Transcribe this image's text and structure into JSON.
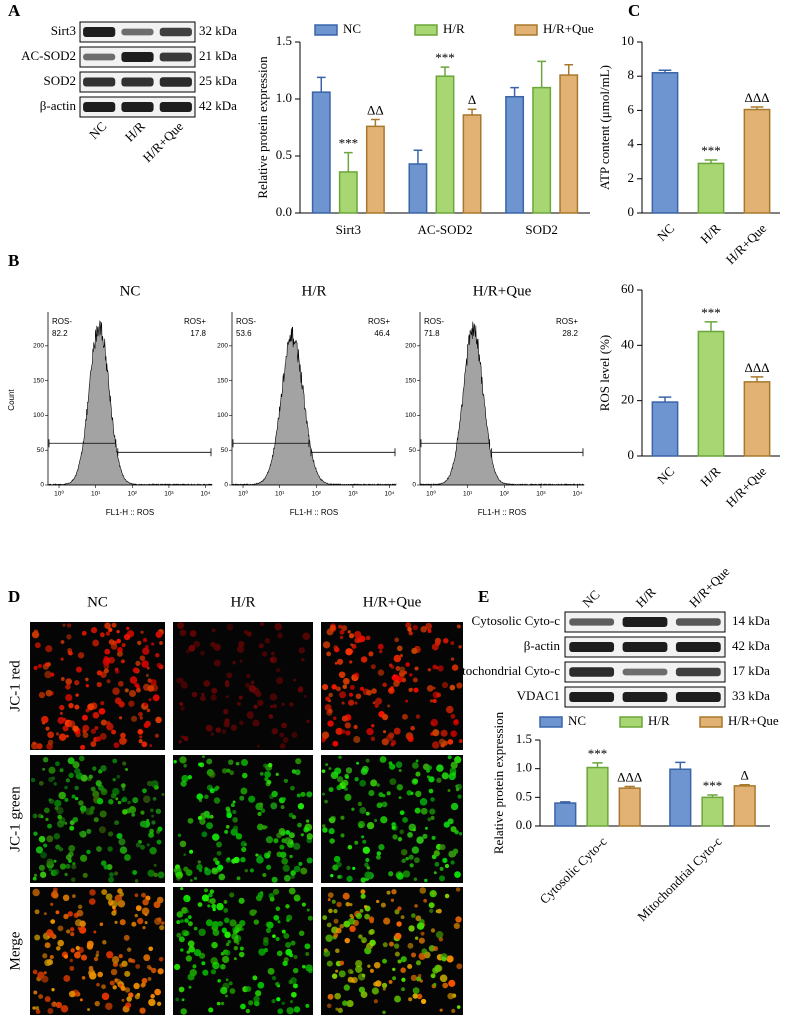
{
  "panel_labels": [
    "A",
    "B",
    "C",
    "D",
    "E"
  ],
  "blot_a": {
    "lanes": [
      "NC",
      "H/R",
      "H/R+Que"
    ],
    "bands": [
      {
        "protein": "Sirt3",
        "size": "32 kDa"
      },
      {
        "protein": "AC-SOD2",
        "size": "21 kDa"
      },
      {
        "protein": "SOD2",
        "size": "25 kDa"
      },
      {
        "protein": "β-actin",
        "size": "42 kDa"
      }
    ]
  },
  "blot_e": {
    "lanes": [
      "NC",
      "H/R",
      "H/R+Que"
    ],
    "bands": [
      {
        "protein": "Cytosolic Cyto-c",
        "size": "14 kDa"
      },
      {
        "protein": "β-actin",
        "size": "42 kDa"
      },
      {
        "protein": "Mitochondrial Cyto-c",
        "size": "17 kDa"
      },
      {
        "protein": "VDAC1",
        "size": "33 kDa"
      }
    ]
  },
  "flow": {
    "y_label": "Count",
    "x_label": "FL1-H :: ROS",
    "gate_labels": [
      "ROS-",
      "ROS+"
    ],
    "ylim": [
      0,
      240
    ],
    "yticks": [
      0,
      50,
      100,
      150,
      200
    ],
    "xlim": [
      0.5,
      15000
    ],
    "log_x": true,
    "xticks": [
      {
        "value": 1,
        "label": "10⁰"
      },
      {
        "value": 10,
        "label": "10¹"
      },
      {
        "value": 100,
        "label": "10²"
      },
      {
        "value": 1000,
        "label": "10³"
      },
      {
        "value": 10000,
        "label": "10⁴"
      }
    ],
    "samples": [
      {
        "title": "NC",
        "negative": 82.2,
        "positive": 17.8
      },
      {
        "title": "H/R",
        "negative": 53.6,
        "positive": 46.4
      },
      {
        "title": "H/R+Que",
        "negative": 71.8,
        "positive": 28.2
      }
    ]
  },
  "microscopy": {
    "columns": [
      "NC",
      "H/R",
      "H/R+Que"
    ],
    "rows": [
      "JC-1 red",
      "JC-1 green",
      "Merge"
    ]
  },
  "chart_data": [
    {
      "type": "bar",
      "y_label": "Relative protein expression",
      "legend": "top",
      "categories": [
        "Sirt3",
        "AC-SOD2",
        "SOD2"
      ],
      "ylim": [
        0,
        1.5
      ],
      "yticks": [
        {
          "value": 0,
          "label": "0.0"
        },
        {
          "value": 0.5,
          "label": "0.5"
        },
        {
          "value": 1,
          "label": "1.0"
        },
        {
          "value": 1.5,
          "label": "1.5"
        }
      ],
      "series": [
        {
          "name": "NC",
          "color": "#6f95d0",
          "edge_color": "#3a64a8",
          "values": [
            1.06,
            0.43,
            1.02
          ],
          "errors": [
            0.13,
            0.12,
            0.08
          ]
        },
        {
          "name": "H/R",
          "color": "#a8d672",
          "edge_color": "#6aa63a",
          "values": [
            0.36,
            1.2,
            1.1
          ],
          "errors": [
            0.17,
            0.08,
            0.23
          ],
          "significance": [
            "***",
            "***",
            null
          ]
        },
        {
          "name": "H/R+Que",
          "color": "#e2b274",
          "edge_color": "#a8782c",
          "values": [
            0.76,
            0.86,
            1.21
          ],
          "errors": [
            0.06,
            0.05,
            0.09
          ],
          "significance": [
            "ΔΔ",
            "Δ",
            null
          ]
        }
      ]
    },
    {
      "type": "bar",
      "y_label": "ATP content (μmol/mL)",
      "categories": [
        "NC",
        "H/R",
        "H/R+Que"
      ],
      "values": [
        8.2,
        2.9,
        6.05
      ],
      "errors": [
        0.15,
        0.2,
        0.15
      ],
      "significance": [
        null,
        "***",
        "ΔΔΔ"
      ],
      "colors": [
        "#6f95d0",
        "#a8d672",
        "#e2b274"
      ],
      "edge_colors": [
        "#3a64a8",
        "#6aa63a",
        "#a8782c"
      ],
      "ylim": [
        0,
        10
      ],
      "yticks": [
        0,
        2,
        4,
        6,
        8,
        10
      ]
    },
    {
      "type": "bar",
      "y_label": "ROS level (%)",
      "categories": [
        "NC",
        "H/R",
        "H/R+Que"
      ],
      "values": [
        19.5,
        45,
        26.8
      ],
      "errors": [
        1.8,
        3.5,
        1.8
      ],
      "significance": [
        null,
        "***",
        "ΔΔΔ"
      ],
      "colors": [
        "#6f95d0",
        "#a8d672",
        "#e2b274"
      ],
      "edge_colors": [
        "#3a64a8",
        "#6aa63a",
        "#a8782c"
      ],
      "ylim": [
        0,
        60
      ],
      "yticks": [
        0,
        20,
        40,
        60
      ]
    },
    {
      "type": "bar",
      "y_label": "Relative protein expression",
      "legend": "top",
      "categories": [
        "Cytosolic Cyto-c",
        "Mitochondrial Cyto-c"
      ],
      "ylim": [
        0,
        1.5
      ],
      "yticks": [
        {
          "value": 0,
          "label": "0.0"
        },
        {
          "value": 0.5,
          "label": "0.5"
        },
        {
          "value": 1,
          "label": "1.0"
        },
        {
          "value": 1.5,
          "label": "1.5"
        }
      ],
      "series": [
        {
          "name": "NC",
          "color": "#6f95d0",
          "edge_color": "#3a64a8",
          "values": [
            0.4,
            0.99
          ],
          "errors": [
            0.02,
            0.12
          ]
        },
        {
          "name": "H/R",
          "color": "#a8d672",
          "edge_color": "#6aa63a",
          "values": [
            1.02,
            0.5
          ],
          "errors": [
            0.08,
            0.04
          ],
          "significance": [
            "***",
            "***"
          ]
        },
        {
          "name": "H/R+Que",
          "color": "#e2b274",
          "edge_color": "#a8782c",
          "values": [
            0.66,
            0.7
          ],
          "errors": [
            0.03,
            0.02
          ],
          "significance": [
            "ΔΔΔ",
            "Δ"
          ]
        }
      ]
    }
  ]
}
